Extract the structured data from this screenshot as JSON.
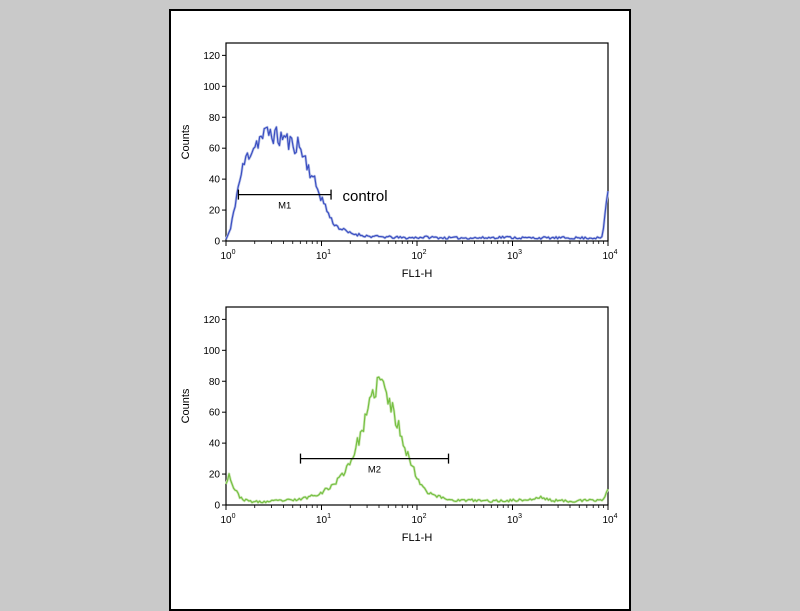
{
  "page": {
    "background": "#c9c9c9",
    "panel_background": "#ffffff",
    "panel_border": "#000000"
  },
  "chart_data": [
    {
      "type": "line",
      "subtype": "flow-cytometry-histogram",
      "title": "",
      "xlabel": "FL1-H",
      "ylabel": "Counts",
      "x_scale": "log10",
      "xlim": [
        1,
        10000
      ],
      "ylim": [
        0,
        128
      ],
      "yticks": [
        0,
        20,
        40,
        60,
        80,
        100,
        120
      ],
      "xtick_exponents": [
        0,
        1,
        2,
        3,
        4
      ],
      "grid": false,
      "legend": false,
      "line_color": "#3b4fc2",
      "halo_color": "#bcc5e8",
      "noise_seed": 11,
      "noise_scale": 0.09,
      "points_log10": [
        [
          0,
          1
        ],
        [
          0.05,
          8
        ],
        [
          0.1,
          26
        ],
        [
          0.15,
          41
        ],
        [
          0.2,
          52
        ],
        [
          0.25,
          58
        ],
        [
          0.3,
          62
        ],
        [
          0.35,
          66
        ],
        [
          0.4,
          68
        ],
        [
          0.45,
          71
        ],
        [
          0.5,
          69
        ],
        [
          0.55,
          66
        ],
        [
          0.6,
          68
        ],
        [
          0.65,
          64
        ],
        [
          0.7,
          62
        ],
        [
          0.75,
          63
        ],
        [
          0.8,
          57
        ],
        [
          0.85,
          50
        ],
        [
          0.9,
          42
        ],
        [
          0.95,
          35
        ],
        [
          1.0,
          28
        ],
        [
          1.05,
          21
        ],
        [
          1.1,
          14
        ],
        [
          1.15,
          10
        ],
        [
          1.2,
          8
        ],
        [
          1.3,
          5
        ],
        [
          1.4,
          4
        ],
        [
          1.5,
          3
        ],
        [
          1.7,
          2.5
        ],
        [
          1.9,
          2
        ],
        [
          2.1,
          2.5
        ],
        [
          2.3,
          2
        ],
        [
          2.5,
          2
        ],
        [
          2.7,
          2
        ],
        [
          2.9,
          2.5
        ],
        [
          3.1,
          2
        ],
        [
          3.3,
          2
        ],
        [
          3.5,
          2
        ],
        [
          3.7,
          2
        ],
        [
          3.85,
          2
        ],
        [
          3.94,
          2
        ],
        [
          4,
          34
        ]
      ],
      "gate": {
        "label": "M1",
        "y": 30,
        "x1_log10": 0.13,
        "x2_log10": 1.1
      },
      "annotation": {
        "text": "control",
        "x_log10": 1.22,
        "y": 26,
        "font_size": 15
      }
    },
    {
      "type": "line",
      "subtype": "flow-cytometry-histogram",
      "title": "",
      "xlabel": "FL1-H",
      "ylabel": "Counts",
      "x_scale": "log10",
      "xlim": [
        1,
        10000
      ],
      "ylim": [
        0,
        128
      ],
      "yticks": [
        0,
        20,
        40,
        60,
        80,
        100,
        120
      ],
      "xtick_exponents": [
        0,
        1,
        2,
        3,
        4
      ],
      "grid": false,
      "legend": false,
      "line_color": "#76c043",
      "halo_color": "#d2e9bd",
      "noise_seed": 23,
      "noise_scale": 0.08,
      "points_log10": [
        [
          0,
          15
        ],
        [
          0.03,
          20
        ],
        [
          0.07,
          13
        ],
        [
          0.1,
          9
        ],
        [
          0.15,
          5
        ],
        [
          0.2,
          3
        ],
        [
          0.3,
          2
        ],
        [
          0.4,
          2
        ],
        [
          0.5,
          2.5
        ],
        [
          0.6,
          3
        ],
        [
          0.7,
          3
        ],
        [
          0.8,
          4
        ],
        [
          0.9,
          6
        ],
        [
          1.0,
          8
        ],
        [
          1.1,
          12
        ],
        [
          1.2,
          18
        ],
        [
          1.3,
          28
        ],
        [
          1.35,
          35
        ],
        [
          1.4,
          44
        ],
        [
          1.45,
          53
        ],
        [
          1.5,
          63
        ],
        [
          1.55,
          73
        ],
        [
          1.6,
          81
        ],
        [
          1.65,
          77
        ],
        [
          1.7,
          68
        ],
        [
          1.75,
          60
        ],
        [
          1.8,
          52
        ],
        [
          1.85,
          43
        ],
        [
          1.9,
          33
        ],
        [
          1.95,
          25
        ],
        [
          2.0,
          18
        ],
        [
          2.05,
          13
        ],
        [
          2.1,
          9
        ],
        [
          2.2,
          6
        ],
        [
          2.3,
          4
        ],
        [
          2.4,
          3
        ],
        [
          2.6,
          3
        ],
        [
          2.8,
          2.5
        ],
        [
          3.0,
          3
        ],
        [
          3.2,
          3.5
        ],
        [
          3.3,
          5
        ],
        [
          3.4,
          3
        ],
        [
          3.6,
          2.5
        ],
        [
          3.8,
          3
        ],
        [
          3.9,
          3
        ],
        [
          3.96,
          4
        ],
        [
          4,
          11
        ]
      ],
      "gate": {
        "label": "M2",
        "y": 30,
        "x1_log10": 0.78,
        "x2_log10": 2.33
      },
      "annotation": null
    }
  ]
}
